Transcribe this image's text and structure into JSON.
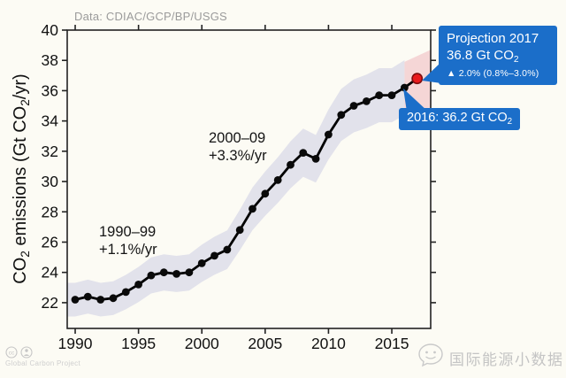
{
  "header": {
    "data_source": "Data: CDIAC/GCP/BP/USGS"
  },
  "ylabel": {
    "p1": "CO",
    "s1": "2",
    "p2": " emissions (Gt CO",
    "s2": "2",
    "p3": "/yr)"
  },
  "callouts": {
    "projection": {
      "title": "Projection 2017",
      "value": "36.8 Gt CO",
      "value_sub": "2",
      "delta": "▲ 2.0% (0.8%–3.0%)"
    },
    "latest": {
      "text": "2016: 36.2 Gt CO",
      "text_sub": "2"
    }
  },
  "footer": {
    "license_cc": "cc",
    "credit": "Global Carbon Project"
  },
  "watermark": {
    "text": "国际能源小数据"
  },
  "chart_data": {
    "type": "line",
    "title": "",
    "xlabel": "",
    "ylabel": "CO2 emissions (Gt CO2/yr)",
    "x": [
      1990,
      1991,
      1992,
      1993,
      1994,
      1995,
      1996,
      1997,
      1998,
      1999,
      2000,
      2001,
      2002,
      2003,
      2004,
      2005,
      2006,
      2007,
      2008,
      2009,
      2010,
      2011,
      2012,
      2013,
      2014,
      2015,
      2016
    ],
    "values": [
      22.2,
      22.4,
      22.2,
      22.3,
      22.7,
      23.2,
      23.8,
      24.0,
      23.9,
      24.0,
      24.6,
      25.1,
      25.5,
      26.8,
      28.2,
      29.2,
      30.1,
      31.1,
      31.9,
      31.5,
      33.1,
      34.4,
      35.0,
      35.3,
      35.7,
      35.7,
      36.2
    ],
    "projection": {
      "year": 2017,
      "value": 36.8,
      "growth": "2.0%",
      "range": "0.8%–3.0%"
    },
    "uncertainty_pct": 5,
    "annotations": [
      {
        "line1": "1990–99",
        "line2": "+1.1%/yr"
      },
      {
        "line1": "2000–09",
        "line2": "+3.3%/yr"
      }
    ],
    "xticks": [
      1990,
      1995,
      2000,
      2005,
      2010,
      2015
    ],
    "yticks": [
      22,
      24,
      26,
      28,
      30,
      32,
      34,
      36,
      38,
      40
    ],
    "xlim": [
      1989.37,
      2018.07
    ],
    "ylim": [
      20.3,
      40
    ],
    "grid": false,
    "legend": "none",
    "colors": {
      "line": "#000000",
      "point": "#0a0a0a",
      "band": "#e2e2eb",
      "proj_band": "#f4d2d3",
      "proj_point": "#e91a1c",
      "proj_point_edge": "#7e0d0d",
      "frame": "#222222",
      "tick_label": "#111111",
      "callout_bg": "#1b6ec9",
      "source_text": "#9b9b9b",
      "watermark": "#c4c4c4"
    }
  }
}
